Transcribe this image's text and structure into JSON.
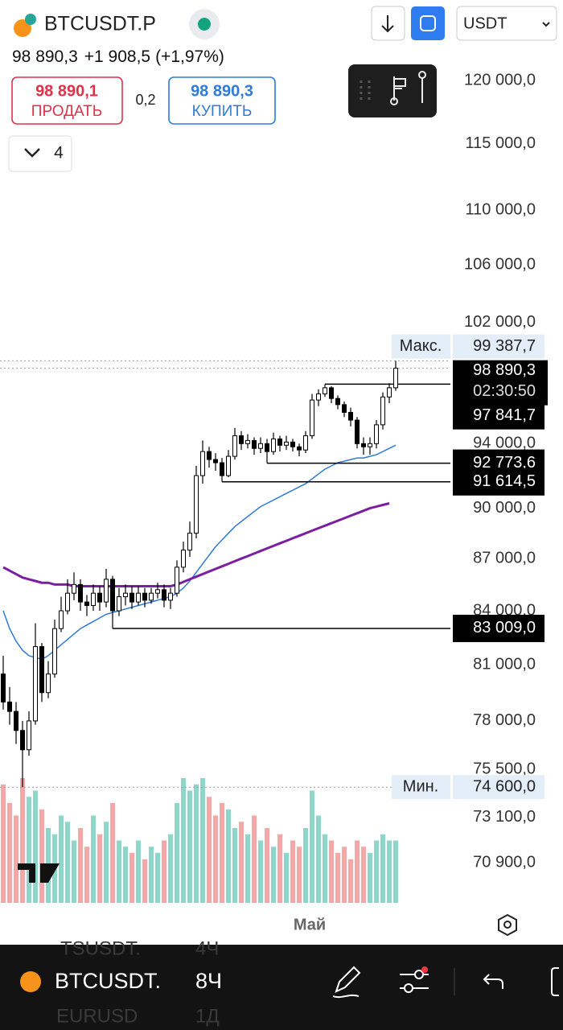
{
  "header": {
    "symbol": "BTCUSDT.P",
    "last": "98 890,3",
    "change": "+1 908,5",
    "change_pct": "(+1,97%)",
    "sell": {
      "price": "98 890,1",
      "label": "ПРОДАТЬ"
    },
    "spread": "0,2",
    "buy": {
      "price": "98 890,3",
      "label": "КУПИТЬ"
    },
    "currency": "USDT",
    "indicators": "4"
  },
  "chart_data": {
    "type": "candlestick",
    "log_scale": true,
    "ylim": [
      68900,
      126700
    ],
    "yticks": [
      {
        "value": 120000,
        "label": "120 000,0"
      },
      {
        "value": 115000,
        "label": "115 000,0"
      },
      {
        "value": 110000,
        "label": "110 000,0"
      },
      {
        "value": 106000,
        "label": "106 000,0"
      },
      {
        "value": 102000,
        "label": "102 000,0"
      },
      {
        "value": 94000,
        "label": "94 000,0"
      },
      {
        "value": 90000,
        "label": "90 000,0"
      },
      {
        "value": 87000,
        "label": "87 000,0"
      },
      {
        "value": 84000,
        "label": "84 000,0"
      },
      {
        "value": 81000,
        "label": "81 000,0"
      },
      {
        "value": 78000,
        "label": "78 000,0"
      },
      {
        "value": 75500,
        "label": "75 500,0"
      },
      {
        "value": 73100,
        "label": "73 100,0"
      },
      {
        "value": 70900,
        "label": "70 900,0"
      }
    ],
    "x_label": "Май",
    "candles": {
      "open": [
        80500,
        79000,
        78500,
        77500,
        76500,
        78000,
        82000,
        79500,
        80500,
        83000,
        84000,
        85000,
        85500,
        84500,
        84300,
        85000,
        84500,
        85800,
        84000,
        84800,
        85000,
        84500,
        85000,
        84600,
        85000,
        85200,
        84600,
        85000,
        86500,
        87500,
        88500,
        92000,
        93500,
        93000,
        92800,
        92000,
        93200,
        94500,
        94000,
        94200,
        93700,
        94000,
        93500,
        94300,
        93900,
        94100,
        93800,
        93600,
        94500,
        96800,
        97200,
        97600,
        96900,
        96500,
        96000,
        95500,
        94000,
        93800,
        94000,
        95200,
        97000,
        97600
      ],
      "high": [
        81500,
        79800,
        79000,
        78000,
        78500,
        83300,
        82200,
        81200,
        83500,
        84800,
        85800,
        86200,
        85800,
        84900,
        85500,
        85400,
        86400,
        86000,
        85300,
        85500,
        85400,
        85400,
        85300,
        85300,
        85600,
        85500,
        85300,
        86900,
        88000,
        89200,
        92600,
        94200,
        93800,
        93400,
        93100,
        93600,
        95000,
        94800,
        94600,
        94400,
        94400,
        94300,
        94700,
        94500,
        94500,
        94300,
        94000,
        94800,
        97200,
        97500,
        97841.7,
        97700,
        97100,
        96700,
        96300,
        95700,
        94400,
        94400,
        95500,
        97300,
        97900,
        99387.7
      ],
      "low": [
        78600,
        77800,
        76800,
        74600,
        76200,
        77800,
        79000,
        79200,
        80300,
        82800,
        83800,
        84600,
        84000,
        83700,
        84000,
        84000,
        84200,
        83009,
        83700,
        84300,
        84100,
        84300,
        84200,
        84400,
        84700,
        84200,
        84100,
        84800,
        86200,
        87100,
        88200,
        91500,
        92500,
        92300,
        91614.5,
        91900,
        93000,
        93600,
        93700,
        93300,
        93400,
        92773.6,
        93300,
        93500,
        93600,
        93500,
        93200,
        93400,
        94300,
        96400,
        97000,
        96600,
        96200,
        95700,
        95100,
        93700,
        93300,
        93300,
        93700,
        94900,
        96600,
        97400
      ],
      "close": [
        79000,
        78500,
        77500,
        76500,
        78000,
        82000,
        79500,
        80500,
        83000,
        84000,
        85000,
        85500,
        84500,
        84300,
        85000,
        84500,
        85800,
        84000,
        84800,
        85000,
        84500,
        85000,
        84600,
        85000,
        85200,
        84600,
        85000,
        86500,
        87500,
        88500,
        92000,
        93500,
        93000,
        92800,
        92000,
        93200,
        94500,
        94000,
        94200,
        93700,
        94000,
        93500,
        94300,
        93900,
        94100,
        93800,
        93600,
        94500,
        96800,
        97200,
        97600,
        96900,
        96500,
        96000,
        95500,
        94000,
        93800,
        94000,
        95200,
        97000,
        97600,
        98890.3
      ]
    },
    "volume": {
      "ylim": [
        0,
        100
      ],
      "up_color": "#8fd6ca",
      "down_color": "#f4a7a7",
      "values": [
        95,
        80,
        70,
        100,
        85,
        90,
        75,
        60,
        55,
        70,
        65,
        50,
        60,
        45,
        70,
        55,
        65,
        80,
        50,
        45,
        40,
        50,
        35,
        45,
        40,
        50,
        55,
        80,
        100,
        90,
        95,
        100,
        85,
        70,
        80,
        75,
        60,
        65,
        55,
        70,
        50,
        60,
        45,
        55,
        40,
        50,
        45,
        60,
        90,
        70,
        55,
        50,
        40,
        45,
        35,
        50,
        45,
        40,
        50,
        55,
        50,
        50
      ]
    },
    "moving_averages": [
      {
        "color": "#2f7bd8",
        "width": 1.5,
        "values": [
          84000,
          83000,
          82300,
          81800,
          81500,
          81400,
          81300,
          81500,
          81800,
          82100,
          82400,
          82700,
          83000,
          83200,
          83400,
          83600,
          83800,
          83900,
          84000,
          84100,
          84200,
          84300,
          84400,
          84500,
          84600,
          84700,
          84800,
          85000,
          85300,
          85700,
          86200,
          86700,
          87200,
          87700,
          88100,
          88500,
          88900,
          89200,
          89500,
          89800,
          90100,
          90300,
          90500,
          90700,
          90900,
          91100,
          91300,
          91500,
          91800,
          92100,
          92400,
          92600,
          92800,
          92900,
          93000,
          93100,
          93100,
          93200,
          93300,
          93500,
          93700,
          93900
        ]
      },
      {
        "color": "#7b1fa2",
        "width": 3,
        "values": [
          86500,
          86300,
          86100,
          85900,
          85800,
          85700,
          85600,
          85600,
          85500,
          85500,
          85500,
          85400,
          85400,
          85400,
          85400,
          85400,
          85400,
          85400,
          85400,
          85400,
          85400,
          85400,
          85400,
          85400,
          85400,
          85400,
          85400,
          85500,
          85650,
          85800,
          85950,
          86100,
          86250,
          86400,
          86550,
          86700,
          86850,
          87000,
          87150,
          87300,
          87450,
          87600,
          87750,
          87900,
          88050,
          88200,
          88350,
          88500,
          88650,
          88800,
          88950,
          89100,
          89250,
          89400,
          89550,
          89700,
          89850,
          90000,
          90100,
          90200,
          90300,
          null
        ]
      }
    ],
    "levels": [
      {
        "value": 97841.7,
        "label": "97 841,7"
      },
      {
        "value": 92773.6,
        "label": "92 773,6"
      },
      {
        "value": 91614.5,
        "label": "91 614,5"
      },
      {
        "value": 83009,
        "label": "83 009,0"
      }
    ],
    "last": {
      "value": 98890.3,
      "label": "98 890,3",
      "countdown": "02:30:50"
    },
    "max": {
      "name": "Макс.",
      "value": 99387.7,
      "label": "99 387,7"
    },
    "min": {
      "name": "Мин.",
      "value": 74600,
      "label": "74 600,0"
    }
  },
  "bottom_bar": {
    "symbol": "BTCUSDT.",
    "interval": "8Ч",
    "hidden_rows": [
      {
        "symbol": "TSUSDT.",
        "interval": "4Ч"
      },
      {
        "symbol": "EURUSD",
        "interval": "1Д"
      }
    ]
  }
}
